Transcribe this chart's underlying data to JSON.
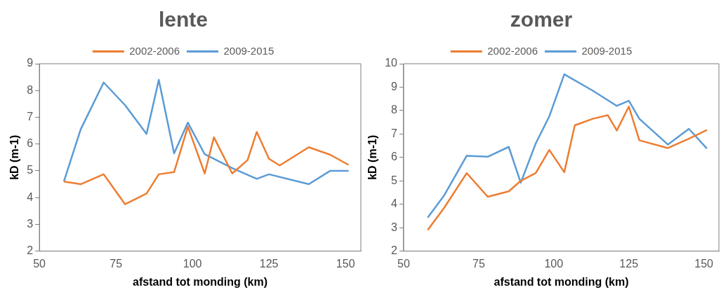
{
  "chart_data": [
    {
      "type": "line",
      "title": "lente",
      "xlabel": "afstand tot monding (km)",
      "ylabel": "kD (m-1)",
      "xlim": [
        50,
        155
      ],
      "xticks": [
        50,
        75,
        100,
        125,
        150
      ],
      "ylim": [
        2,
        9
      ],
      "yticks": [
        2,
        3,
        4,
        5,
        6,
        7,
        8,
        9
      ],
      "grid": false,
      "legend": "top",
      "marker": "none",
      "series": [
        {
          "name": "2002-2006",
          "color": "#ed7d31",
          "x": [
            58,
            63.5,
            71,
            78,
            85,
            89,
            94,
            98.5,
            104,
            107,
            113,
            118,
            121,
            125,
            128.5,
            138,
            145,
            151
          ],
          "values": [
            4.6,
            4.5,
            4.87,
            3.75,
            4.15,
            4.87,
            4.95,
            6.65,
            4.9,
            6.25,
            4.9,
            5.4,
            6.45,
            5.45,
            5.2,
            5.88,
            5.6,
            5.22
          ]
        },
        {
          "name": "2009-2015",
          "color": "#5b9bd5",
          "x": [
            58,
            63.5,
            71,
            78,
            85,
            89,
            94,
            98.5,
            104,
            113,
            121,
            125,
            138,
            145,
            151
          ],
          "values": [
            4.6,
            6.55,
            8.3,
            7.45,
            6.38,
            8.4,
            5.65,
            6.8,
            5.62,
            5.1,
            4.7,
            4.87,
            4.5,
            5.0,
            5.0
          ]
        }
      ]
    },
    {
      "type": "line",
      "title": "zomer",
      "xlabel": "afstand tot monding (km)",
      "ylabel": "kD (m-1)",
      "xlim": [
        50,
        155
      ],
      "xticks": [
        50,
        75,
        100,
        125,
        150
      ],
      "ylim": [
        2,
        10
      ],
      "yticks": [
        2,
        3,
        4,
        5,
        6,
        7,
        8,
        9,
        10
      ],
      "grid": false,
      "legend": "top",
      "marker": "none",
      "series": [
        {
          "name": "2002-2006",
          "color": "#ed7d31",
          "x": [
            58,
            63.5,
            71,
            78,
            85,
            89,
            94,
            98.5,
            103.5,
            107,
            113,
            118,
            121,
            125,
            128.5,
            138,
            145,
            151
          ],
          "values": [
            2.9,
            3.85,
            5.33,
            4.32,
            4.55,
            5.0,
            5.33,
            6.32,
            5.37,
            7.37,
            7.65,
            7.8,
            7.15,
            8.17,
            6.73,
            6.4,
            6.8,
            7.17
          ]
        },
        {
          "name": "2009-2015",
          "color": "#5b9bd5",
          "x": [
            58,
            63.5,
            71,
            78,
            85,
            89,
            94,
            98.5,
            103.5,
            113,
            121,
            125,
            128.5,
            138,
            145,
            151
          ],
          "values": [
            3.43,
            4.38,
            6.07,
            6.03,
            6.45,
            4.92,
            6.6,
            7.75,
            9.55,
            8.85,
            8.2,
            8.42,
            7.65,
            6.55,
            7.22,
            6.38
          ]
        }
      ]
    }
  ]
}
